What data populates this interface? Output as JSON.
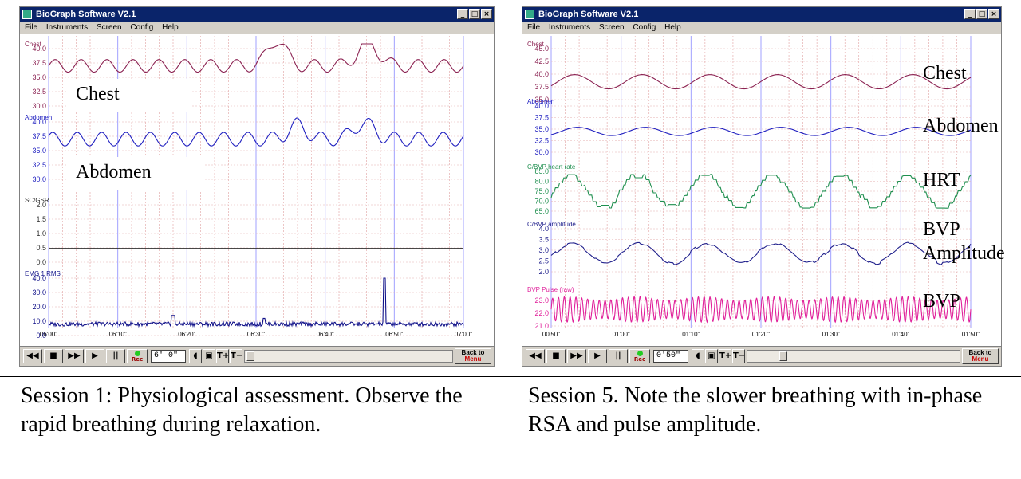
{
  "left_window": {
    "title": "BioGraph Software V2.1",
    "menu": [
      "File",
      "Instruments",
      "Screen",
      "Config",
      "Help"
    ],
    "window_buttons": [
      "_",
      "□",
      "×"
    ],
    "time_input": "6' 0\"",
    "rec_label": "Rec",
    "back_label_1": "Back to",
    "back_label_2": "Menu",
    "overlay_chest": "Chest",
    "overlay_abdomen": "Abdomen",
    "x_ticks": [
      "06'00\"",
      "06'10\"",
      "06'20\"",
      "06'30\"",
      "06'40\"",
      "06'50\"",
      "07'00\""
    ]
  },
  "right_window": {
    "title": "BioGraph Software V2.1",
    "menu": [
      "File",
      "Instruments",
      "Screen",
      "Config",
      "Help"
    ],
    "window_buttons": [
      "_",
      "□",
      "×"
    ],
    "time_input": "0'50\"",
    "rec_label": "Rec",
    "back_label_1": "Back to",
    "back_label_2": "Menu",
    "overlay_chest": "Chest",
    "overlay_abdomen": "Abdomen",
    "overlay_hrt": "HRT",
    "overlay_bvp_amp_1": "BVP",
    "overlay_bvp_amp_2": "Amplitude",
    "overlay_bvp": "BVP",
    "x_ticks": [
      "00'50\"",
      "01'00\"",
      "01'10\"",
      "01'20\"",
      "01'30\"",
      "01'40\"",
      "01'50\""
    ]
  },
  "captions": {
    "left": "Session 1: Physiological assessment. Observe the rapid breathing during relaxation.",
    "right": "Session 5.  Note the slower breathing with in-phase RSA and pulse amplitude."
  },
  "chart_data": [
    {
      "type": "line",
      "title": "Session 1",
      "x_range": [
        "06'00\"",
        "07'00\""
      ],
      "channels": [
        {
          "name": "Chest",
          "color": "#8b2252",
          "ticks": [
            "40.0",
            "37.5",
            "35.0",
            "32.5",
            "30.0"
          ],
          "ylim": [
            30.0,
            40.0
          ],
          "range_observed": [
            36.5,
            41.0
          ]
        },
        {
          "name": "Abdomen",
          "color": "#2020c0",
          "ticks": [
            "40.0",
            "37.5",
            "35.0",
            "32.5",
            "30.0"
          ],
          "ylim": [
            30.0,
            40.0
          ],
          "range_observed": [
            35.5,
            40.0
          ]
        },
        {
          "name": "SC/GSR",
          "color": "#303030",
          "ticks": [
            "2.0",
            "1.5",
            "1.0",
            "0.5",
            "0.0"
          ],
          "ylim": [
            0.0,
            2.0
          ],
          "values_constant": 0.48
        },
        {
          "name": "EMG 1 RMS",
          "color": "#101088",
          "ticks": [
            "40.0",
            "30.0",
            "20.0",
            "10.0",
            "0.0"
          ],
          "ylim": [
            0.0,
            40.0
          ],
          "baseline": 8.0,
          "spike_peak": 40.0
        }
      ]
    },
    {
      "type": "line",
      "title": "Session 5",
      "x_range": [
        "00'50\"",
        "01'50\""
      ],
      "channels": [
        {
          "name": "Chest",
          "color": "#8b2252",
          "ticks": [
            "45.0",
            "42.5",
            "40.0",
            "37.5",
            "35.0"
          ],
          "ylim": [
            35.0,
            45.0
          ],
          "range_observed": [
            37.0,
            40.0
          ]
        },
        {
          "name": "Abdomen",
          "color": "#2020c0",
          "ticks": [
            "40.0",
            "37.5",
            "35.0",
            "32.5",
            "30.0"
          ],
          "ylim": [
            30.0,
            40.0
          ],
          "range_observed": [
            33.5,
            35.5
          ]
        },
        {
          "name": "C/BVP heart rate",
          "color": "#1f8f4f",
          "ticks": [
            "85.0",
            "80.0",
            "75.0",
            "70.0",
            "65.0"
          ],
          "ylim": [
            65.0,
            85.0
          ],
          "range_observed": [
            66.0,
            84.0
          ]
        },
        {
          "name": "C/BVP amplitude",
          "color": "#20208c",
          "ticks": [
            "4.0",
            "3.5",
            "3.0",
            "2.5",
            "2.0"
          ],
          "ylim": [
            2.0,
            4.0
          ],
          "range_observed": [
            2.3,
            3.4
          ]
        },
        {
          "name": "BVP Pulse (raw)",
          "color": "#e0209a",
          "ticks": [
            "23.0",
            "22.0",
            "21.0"
          ],
          "ylim": [
            21.0,
            23.5
          ],
          "range_observed": [
            21.2,
            23.4
          ]
        }
      ]
    }
  ]
}
